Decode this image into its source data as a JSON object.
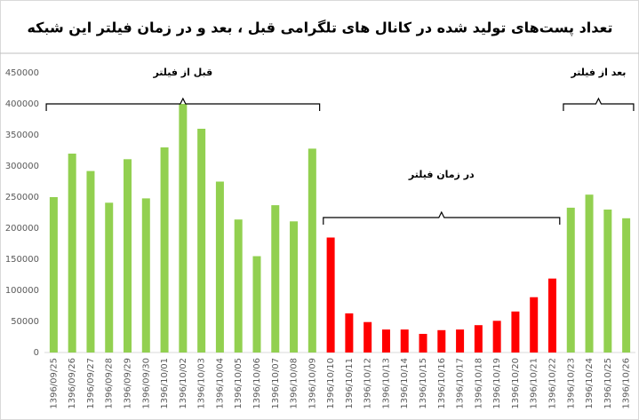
{
  "chart_data": {
    "type": "bar",
    "title": "تعداد پست‌های تولید شده در کانال های تلگرامی قبل ، بعد و در زمان فیلتر این شبکه",
    "categories": [
      "1396/09/25",
      "1396/09/26",
      "1396/09/27",
      "1396/09/28",
      "1396/09/29",
      "1396/09/30",
      "1396/10/01",
      "1396/10/02",
      "1396/10/03",
      "1396/10/04",
      "1396/10/05",
      "1396/10/06",
      "1396/10/07",
      "1396/10/08",
      "1396/10/09",
      "1396/10/10",
      "1396/10/11",
      "1396/10/12",
      "1396/10/13",
      "1396/10/14",
      "1396/10/15",
      "1396/10/16",
      "1396/10/17",
      "1396/10/18",
      "1396/10/19",
      "1396/10/20",
      "1396/10/21",
      "1396/10/22",
      "1396/10/23",
      "1396/10/24",
      "1396/10/25",
      "1396/10/26"
    ],
    "values": [
      250000,
      320000,
      292000,
      241000,
      311000,
      248000,
      330000,
      400000,
      360000,
      275000,
      214000,
      155000,
      237000,
      211000,
      328000,
      185000,
      63000,
      49000,
      37000,
      37000,
      30000,
      36000,
      37000,
      44000,
      51000,
      66000,
      89000,
      119000,
      233000,
      254000,
      230000,
      216000
    ],
    "colors": [
      "#92d050",
      "#92d050",
      "#92d050",
      "#92d050",
      "#92d050",
      "#92d050",
      "#92d050",
      "#92d050",
      "#92d050",
      "#92d050",
      "#92d050",
      "#92d050",
      "#92d050",
      "#92d050",
      "#92d050",
      "#ff0000",
      "#ff0000",
      "#ff0000",
      "#ff0000",
      "#ff0000",
      "#ff0000",
      "#ff0000",
      "#ff0000",
      "#ff0000",
      "#ff0000",
      "#ff0000",
      "#ff0000",
      "#ff0000",
      "#92d050",
      "#92d050",
      "#92d050",
      "#92d050"
    ],
    "annotations": [
      "قبل از فیلتر",
      "در زمان فیلتر",
      "بعد از فیلتر"
    ],
    "ylim": [
      0,
      450000
    ],
    "yticks": [
      0,
      50000,
      100000,
      150000,
      200000,
      250000,
      300000,
      350000,
      400000,
      450000
    ],
    "grid": false
  }
}
